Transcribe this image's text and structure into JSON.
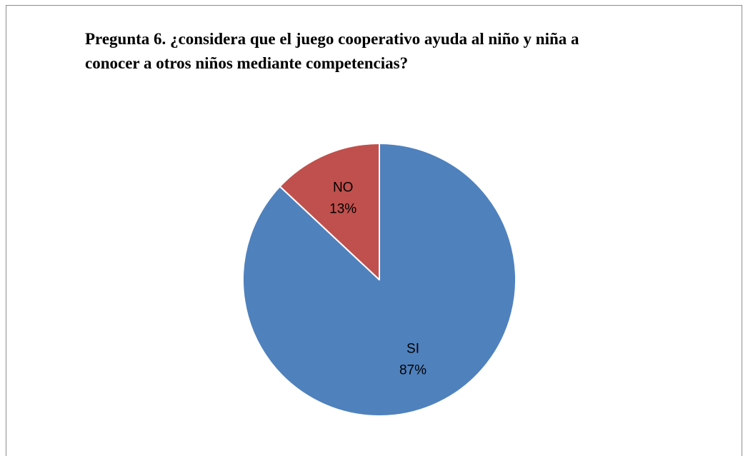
{
  "chart_data": {
    "type": "pie",
    "title": "Pregunta 6. ¿considera  que el juego cooperativo ayuda al niño y niña a conocer a otros niños mediante competencias?",
    "categories": [
      "SI",
      "NO"
    ],
    "values": [
      87,
      13
    ],
    "value_labels": [
      "87%",
      "13%"
    ],
    "colors": [
      "#4F81BD",
      "#C0504D"
    ],
    "legend": "none",
    "start_angle": "top, clockwise"
  }
}
